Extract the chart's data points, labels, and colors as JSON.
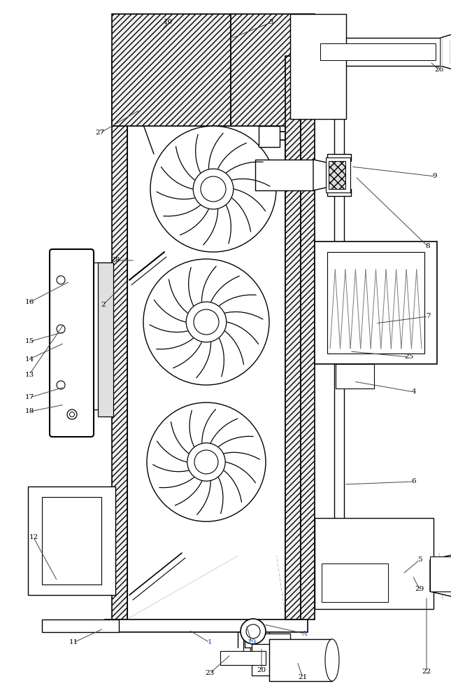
{
  "bg_color": "#ffffff",
  "lc": "#000000",
  "blue": "#1a56c4",
  "fig_w": 6.45,
  "fig_h": 10.0
}
